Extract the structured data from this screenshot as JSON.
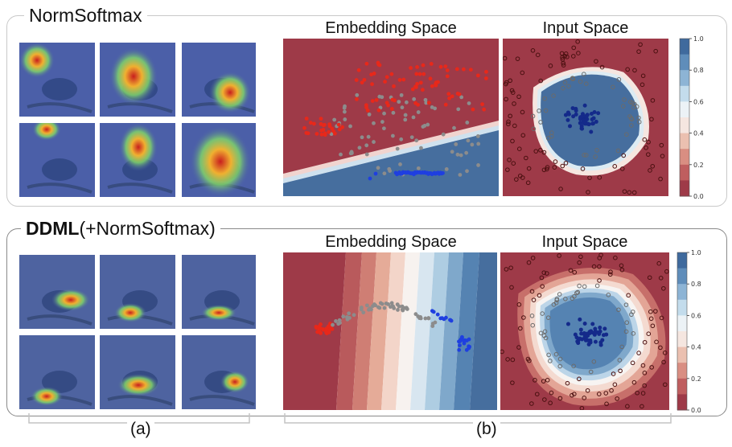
{
  "panel_a": {
    "title": "NormSoftmax"
  },
  "panel_b": {
    "title_bold": "DDML",
    "title_rest": "(+NormSoftmax)"
  },
  "subplot_titles": {
    "embedding": "Embedding Space",
    "input": "Input Space"
  },
  "colorbar": {
    "ticks": [
      "1.0",
      "0.8",
      "0.6",
      "0.4",
      "0.2",
      "0.0"
    ]
  },
  "bottom_labels": {
    "a": "(a)",
    "b": "(b)"
  },
  "colors": {
    "red_region": "#9e3a48",
    "blue_region": "#466e9e",
    "red_points": "#e8281a",
    "blue_points": "#1f3fe0",
    "gray_points": "#8c8c8c"
  }
}
